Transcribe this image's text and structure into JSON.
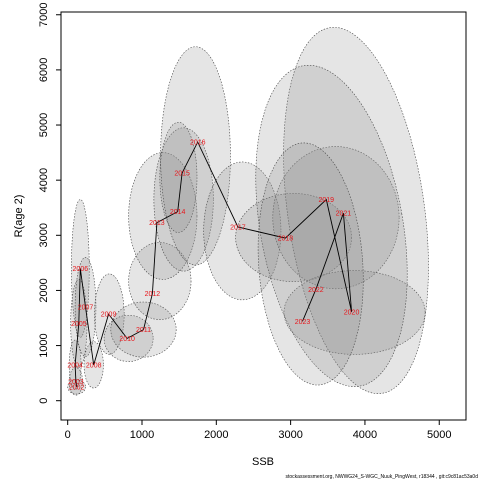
{
  "chart_data": {
    "type": "scatter",
    "title": "",
    "xlabel": "SSB",
    "ylabel": "R(age 2)",
    "xlim": [
      -90,
      5360
    ],
    "ylim": [
      -350,
      7050
    ],
    "xticks": [
      0,
      1000,
      2000,
      3000,
      4000,
      5000
    ],
    "yticks": [
      0,
      1000,
      2000,
      3000,
      4000,
      5000,
      6000,
      7000
    ],
    "grid": false,
    "legend": "none",
    "line_color": "#000000",
    "label_color": "#e8161b",
    "ellipse_fill": "#8a8a8a",
    "points": [
      {
        "year": "2002",
        "ssb": 120,
        "rec": 250
      },
      {
        "year": "2003",
        "ssb": 110,
        "rec": 350
      },
      {
        "year": "2004",
        "ssb": 100,
        "rec": 650
      },
      {
        "year": "2005",
        "ssb": 150,
        "rec": 1400
      },
      {
        "year": "2006",
        "ssb": 170,
        "rec": 2400
      },
      {
        "year": "2007",
        "ssb": 240,
        "rec": 1700
      },
      {
        "year": "2008",
        "ssb": 350,
        "rec": 650
      },
      {
        "year": "2009",
        "ssb": 550,
        "rec": 1570
      },
      {
        "year": "2010",
        "ssb": 800,
        "rec": 1130
      },
      {
        "year": "2011",
        "ssb": 1020,
        "rec": 1290
      },
      {
        "year": "2012",
        "ssb": 1140,
        "rec": 1940
      },
      {
        "year": "2013",
        "ssb": 1200,
        "rec": 3230
      },
      {
        "year": "2014",
        "ssb": 1480,
        "rec": 3430
      },
      {
        "year": "2015",
        "ssb": 1540,
        "rec": 4130
      },
      {
        "year": "2016",
        "ssb": 1750,
        "rec": 4690
      },
      {
        "year": "2017",
        "ssb": 2290,
        "rec": 3150
      },
      {
        "year": "2018",
        "ssb": 2930,
        "rec": 2950
      },
      {
        "year": "2019",
        "ssb": 3480,
        "rec": 3650
      },
      {
        "year": "2020",
        "ssb": 3820,
        "rec": 1610
      },
      {
        "year": "2021",
        "ssb": 3710,
        "rec": 3400
      },
      {
        "year": "2022",
        "ssb": 3340,
        "rec": 2020
      },
      {
        "year": "2023",
        "ssb": 3160,
        "rec": 1440
      }
    ],
    "ellipses": [
      {
        "year": "2002",
        "cx": 120,
        "cy": 250,
        "rx": 120,
        "ry": 130,
        "angle": 0
      },
      {
        "year": "2003",
        "cx": 110,
        "cy": 350,
        "rx": 90,
        "ry": 250,
        "angle": 0
      },
      {
        "year": "2004",
        "cx": 100,
        "cy": 650,
        "rx": 80,
        "ry": 450,
        "angle": 0
      },
      {
        "year": "2005",
        "cx": 150,
        "cy": 1400,
        "rx": 110,
        "ry": 800,
        "angle": 0
      },
      {
        "year": "2006",
        "cx": 170,
        "cy": 2400,
        "rx": 120,
        "ry": 1250,
        "angle": 0
      },
      {
        "year": "2007",
        "cx": 240,
        "cy": 1700,
        "rx": 140,
        "ry": 900,
        "angle": 0
      },
      {
        "year": "2008",
        "cx": 350,
        "cy": 650,
        "rx": 130,
        "ry": 420,
        "angle": 0
      },
      {
        "year": "2009",
        "cx": 560,
        "cy": 1570,
        "rx": 200,
        "ry": 730,
        "angle": 0
      },
      {
        "year": "2010",
        "cx": 820,
        "cy": 1130,
        "rx": 330,
        "ry": 420,
        "angle": 0
      },
      {
        "year": "2011",
        "cx": 1020,
        "cy": 1290,
        "rx": 440,
        "ry": 500,
        "angle": 0
      },
      {
        "year": "2012",
        "cx": 1240,
        "cy": 2170,
        "rx": 420,
        "ry": 700,
        "angle": 0
      },
      {
        "year": "2013",
        "cx": 1280,
        "cy": 3350,
        "rx": 460,
        "ry": 1150,
        "angle": 0
      },
      {
        "year": "2014",
        "cx": 1560,
        "cy": 3650,
        "rx": 400,
        "ry": 1300,
        "angle": 0
      },
      {
        "year": "2015",
        "cx": 1490,
        "cy": 4050,
        "rx": 250,
        "ry": 1000,
        "angle": 0
      },
      {
        "year": "2016",
        "cx": 1720,
        "cy": 4440,
        "rx": 470,
        "ry": 1980,
        "angle": 0
      },
      {
        "year": "2017",
        "cx": 2350,
        "cy": 3080,
        "rx": 520,
        "ry": 1250,
        "angle": 0
      },
      {
        "year": "2018",
        "cx": 3040,
        "cy": 2960,
        "rx": 780,
        "ry": 800,
        "angle": 0
      },
      {
        "year": "2019",
        "cx": 3610,
        "cy": 3320,
        "rx": 850,
        "ry": 1290,
        "angle": 0
      },
      {
        "year": "2020",
        "cx": 3860,
        "cy": 1600,
        "rx": 950,
        "ry": 760,
        "angle": 0
      },
      {
        "year": "2021",
        "cx": 3880,
        "cy": 3450,
        "rx": 920,
        "ry": 3350,
        "angle": -8
      },
      {
        "year": "2022",
        "cx": 3550,
        "cy": 3170,
        "rx": 960,
        "ry": 2950,
        "angle": -10
      },
      {
        "year": "2023",
        "cx": 3270,
        "cy": 2480,
        "rx": 700,
        "ry": 2200,
        "angle": -4
      }
    ]
  },
  "footer": "stockassessment.org, NWWG24_S-WGC_Nuuk_PingWest, r18344 , git:c9c81ac53a0d"
}
